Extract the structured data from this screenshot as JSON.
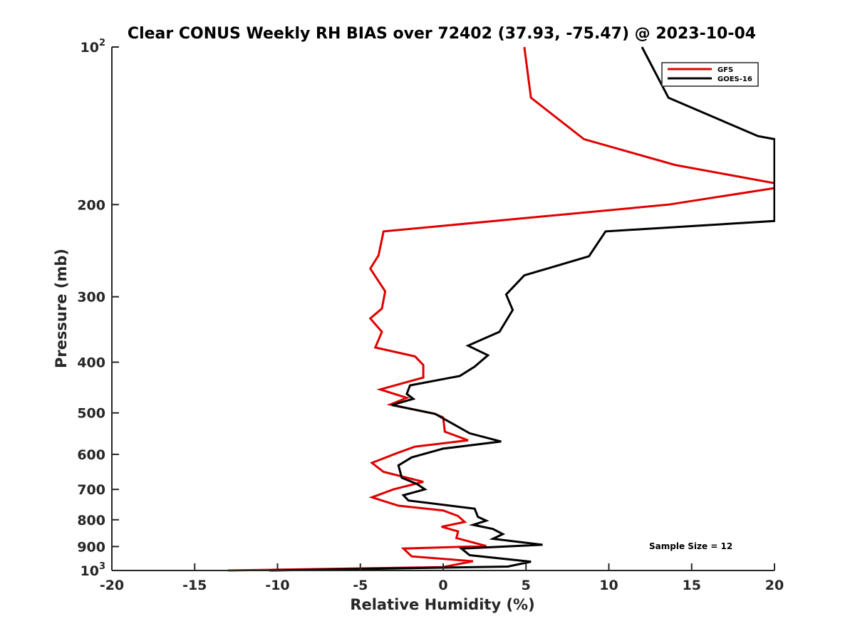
{
  "chart_data": {
    "type": "line",
    "title": "Clear CONUS Weekly RH BIAS over 72402 (37.93, -75.47) @ 2023-10-04",
    "xlabel": "Relative Humidity (%)",
    "ylabel": "Pressure (mb)",
    "xlim": [
      -20,
      20
    ],
    "ylim": [
      100,
      1000
    ],
    "yscale": "log",
    "y_reversed": true,
    "grid": false,
    "x_ticks": [
      -20,
      -15,
      -10,
      -5,
      0,
      5,
      10,
      15,
      20
    ],
    "x_tick_labels": [
      "-20",
      "-15",
      "-10",
      "-5",
      "0",
      "5",
      "10",
      "15",
      "20"
    ],
    "y_ticks": [
      100,
      200,
      300,
      400,
      500,
      600,
      700,
      800,
      900,
      1000
    ],
    "y_tick_labels": [
      {
        "base": "10",
        "sup": "2"
      },
      {
        "base": "200",
        "sup": ""
      },
      {
        "base": "300",
        "sup": ""
      },
      {
        "base": "400",
        "sup": ""
      },
      {
        "base": "500",
        "sup": ""
      },
      {
        "base": "600",
        "sup": ""
      },
      {
        "base": "700",
        "sup": ""
      },
      {
        "base": "800",
        "sup": ""
      },
      {
        "base": "900",
        "sup": ""
      },
      {
        "base": "10",
        "sup": "3"
      }
    ],
    "legend_position": "top-right",
    "annotation": "Sample Size = 12",
    "series": [
      {
        "name": "GFS",
        "color": "#e00000",
        "points": [
          {
            "x": 4.9,
            "y": 100
          },
          {
            "x": 5.3,
            "y": 125
          },
          {
            "x": 8.5,
            "y": 150
          },
          {
            "x": 14.0,
            "y": 168
          },
          {
            "x": 20.0,
            "y": 182
          },
          {
            "x": 20.0,
            "y": 186
          },
          {
            "x": 13.6,
            "y": 200
          },
          {
            "x": -3.6,
            "y": 225
          },
          {
            "x": -3.9,
            "y": 250
          },
          {
            "x": -4.4,
            "y": 265
          },
          {
            "x": -3.5,
            "y": 293
          },
          {
            "x": -3.7,
            "y": 316
          },
          {
            "x": -4.4,
            "y": 330
          },
          {
            "x": -3.7,
            "y": 350
          },
          {
            "x": -4.1,
            "y": 375
          },
          {
            "x": -1.7,
            "y": 390
          },
          {
            "x": -1.2,
            "y": 405
          },
          {
            "x": -1.2,
            "y": 428
          },
          {
            "x": -3.8,
            "y": 451
          },
          {
            "x": -2.2,
            "y": 468
          },
          {
            "x": -3.2,
            "y": 482
          },
          {
            "x": -0.5,
            "y": 502
          },
          {
            "x": 0.0,
            "y": 510
          },
          {
            "x": 0.1,
            "y": 543
          },
          {
            "x": 1.5,
            "y": 564
          },
          {
            "x": -1.7,
            "y": 580
          },
          {
            "x": -2.8,
            "y": 597
          },
          {
            "x": -4.3,
            "y": 623
          },
          {
            "x": -3.6,
            "y": 648
          },
          {
            "x": -1.2,
            "y": 677
          },
          {
            "x": -3.0,
            "y": 700
          },
          {
            "x": -4.3,
            "y": 725
          },
          {
            "x": -2.7,
            "y": 752
          },
          {
            "x": 0.0,
            "y": 768
          },
          {
            "x": 0.9,
            "y": 787
          },
          {
            "x": 1.3,
            "y": 808
          },
          {
            "x": -0.1,
            "y": 825
          },
          {
            "x": 0.9,
            "y": 842
          },
          {
            "x": 0.8,
            "y": 867
          },
          {
            "x": 2.6,
            "y": 898
          },
          {
            "x": -2.4,
            "y": 908
          },
          {
            "x": -1.9,
            "y": 940
          },
          {
            "x": 1.8,
            "y": 960
          },
          {
            "x": 0.0,
            "y": 985
          },
          {
            "x": -13.0,
            "y": 1000
          }
        ]
      },
      {
        "name": "GOES-16",
        "color": "#000000",
        "points": [
          {
            "x": 12.0,
            "y": 100
          },
          {
            "x": 13.6,
            "y": 125
          },
          {
            "x": 19.0,
            "y": 148
          },
          {
            "x": 20.0,
            "y": 150
          },
          {
            "x": 20.0,
            "y": 215
          },
          {
            "x": 9.8,
            "y": 225
          },
          {
            "x": 8.8,
            "y": 251
          },
          {
            "x": 4.9,
            "y": 273
          },
          {
            "x": 3.8,
            "y": 297
          },
          {
            "x": 4.2,
            "y": 318
          },
          {
            "x": 3.4,
            "y": 350
          },
          {
            "x": 1.5,
            "y": 372
          },
          {
            "x": 2.7,
            "y": 388
          },
          {
            "x": 1.9,
            "y": 408
          },
          {
            "x": 1.0,
            "y": 425
          },
          {
            "x": -2.0,
            "y": 443
          },
          {
            "x": -2.2,
            "y": 460
          },
          {
            "x": -1.8,
            "y": 470
          },
          {
            "x": -3.1,
            "y": 483
          },
          {
            "x": -0.5,
            "y": 502
          },
          {
            "x": 0.6,
            "y": 525
          },
          {
            "x": 1.6,
            "y": 547
          },
          {
            "x": 3.5,
            "y": 567
          },
          {
            "x": 0.0,
            "y": 585
          },
          {
            "x": -1.9,
            "y": 608
          },
          {
            "x": -2.7,
            "y": 630
          },
          {
            "x": -2.5,
            "y": 665
          },
          {
            "x": -1.6,
            "y": 683
          },
          {
            "x": -1.1,
            "y": 700
          },
          {
            "x": -2.4,
            "y": 718
          },
          {
            "x": -2.1,
            "y": 735
          },
          {
            "x": 1.9,
            "y": 762
          },
          {
            "x": 2.1,
            "y": 790
          },
          {
            "x": 2.6,
            "y": 803
          },
          {
            "x": 1.8,
            "y": 818
          },
          {
            "x": 3.0,
            "y": 833
          },
          {
            "x": 3.6,
            "y": 852
          },
          {
            "x": 3.0,
            "y": 870
          },
          {
            "x": 6.0,
            "y": 893
          },
          {
            "x": 1.1,
            "y": 908
          },
          {
            "x": 1.6,
            "y": 935
          },
          {
            "x": 5.3,
            "y": 962
          },
          {
            "x": 3.9,
            "y": 983
          },
          {
            "x": -10.5,
            "y": 1000
          }
        ]
      }
    ]
  }
}
